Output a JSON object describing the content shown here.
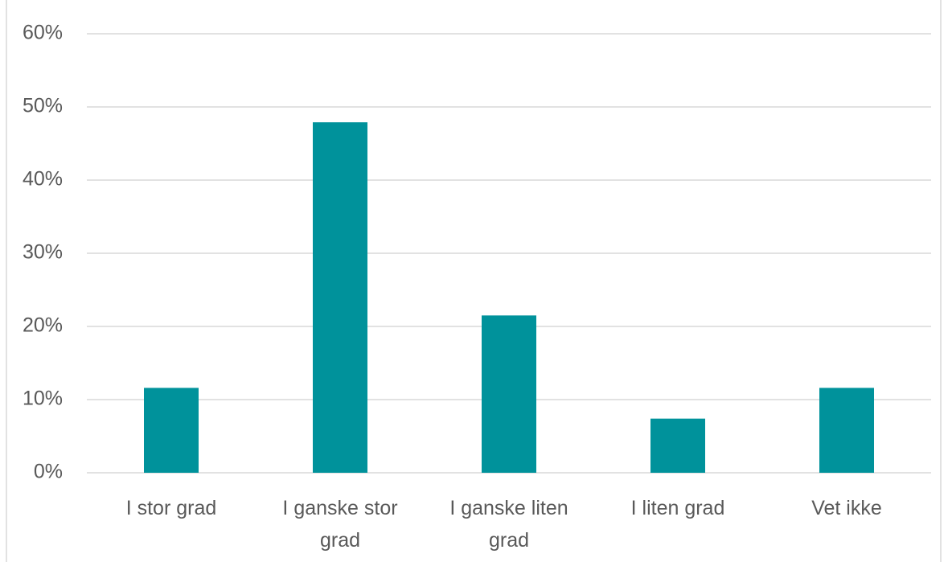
{
  "chart_data": {
    "type": "bar",
    "categories": [
      "I stor grad",
      "I ganske stor grad",
      "I ganske liten grad",
      "I liten grad",
      "Vet ikke"
    ],
    "values": [
      11.6,
      47.9,
      21.5,
      7.4,
      11.6
    ],
    "color": "#00929b",
    "ylim": [
      0,
      60
    ],
    "yticks": [
      {
        "value": 0,
        "label": "0%"
      },
      {
        "value": 10,
        "label": "10%"
      },
      {
        "value": 20,
        "label": "20%"
      },
      {
        "value": 30,
        "label": "30%"
      },
      {
        "value": 40,
        "label": "40%"
      },
      {
        "value": 50,
        "label": "50%"
      },
      {
        "value": 60,
        "label": "60%"
      }
    ],
    "grid": true
  }
}
